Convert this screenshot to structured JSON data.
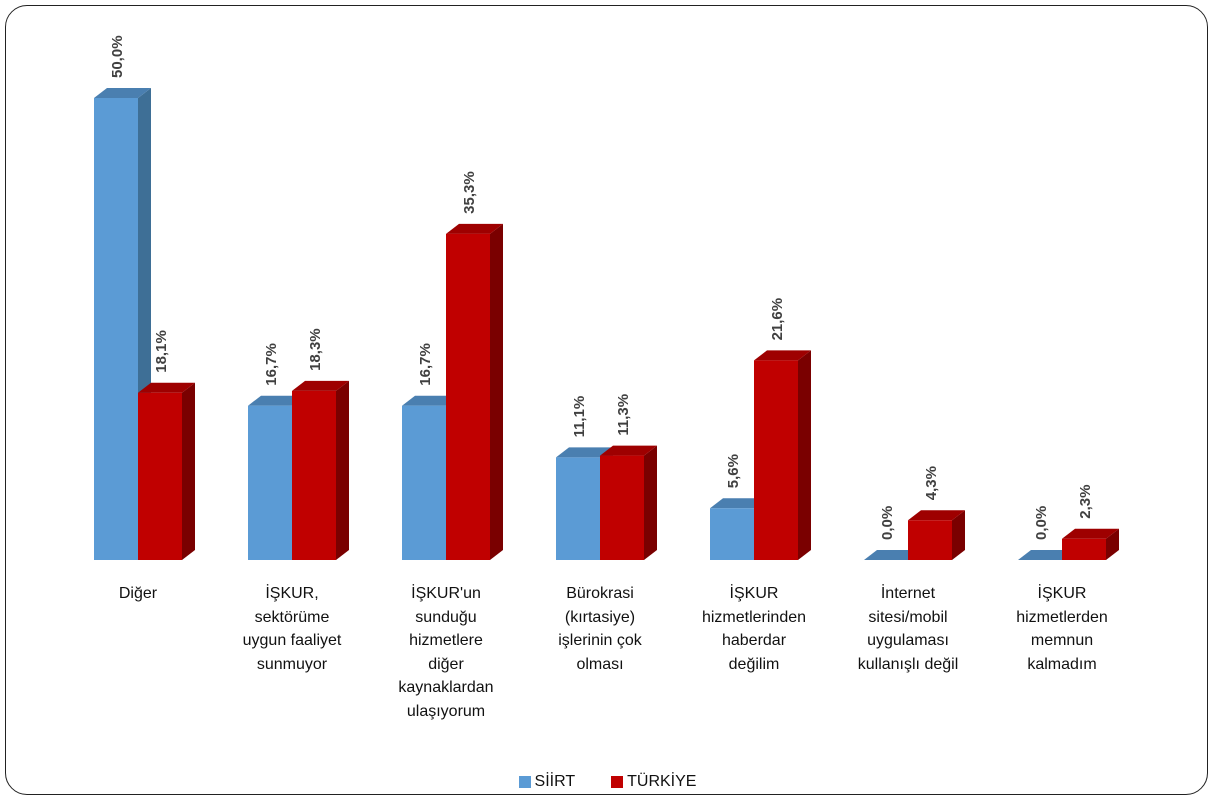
{
  "chart_data": {
    "type": "bar",
    "categories": [
      "Diğer",
      "İŞKUR,\nsektörüme\nuygun faaliyet\nsunmuyor",
      "İŞKUR'un\nsunduğu\nhizmetlere\ndiğer\nkaynaklardan\nulaşıyorum",
      "Bürokrasi\n(kırtasiye)\nişlerinin çok\nolması",
      "İŞKUR\nhizmetlerinden\nhaberdar\ndeğilim",
      "İnternet\nsitesi/mobil\nuygulaması\nkullanışlı değil",
      "İŞKUR\nhizmetlerden\nmemnun\nkalmadım"
    ],
    "series": [
      {
        "name": "SİİRT",
        "values": [
          50.0,
          16.7,
          16.7,
          11.1,
          5.6,
          0.0,
          0.0
        ],
        "labels": [
          "50,0%",
          "16,7%",
          "16,7%",
          "11,1%",
          "5,6%",
          "0,0%",
          "0,0%"
        ],
        "color": "#5B9BD5",
        "side_color": "#3E6F96",
        "top_color": "#4A7FB0"
      },
      {
        "name": "TÜRKİYE",
        "values": [
          18.1,
          18.3,
          35.3,
          11.3,
          21.6,
          4.3,
          2.3
        ],
        "labels": [
          "18,1%",
          "18,3%",
          "35,3%",
          "11,3%",
          "21,6%",
          "4,3%",
          "2,3%"
        ],
        "color": "#C00000",
        "side_color": "#7A0000",
        "top_color": "#9E0000"
      }
    ],
    "ylim": [
      0,
      50
    ],
    "grid": false,
    "legend": "bottom"
  }
}
